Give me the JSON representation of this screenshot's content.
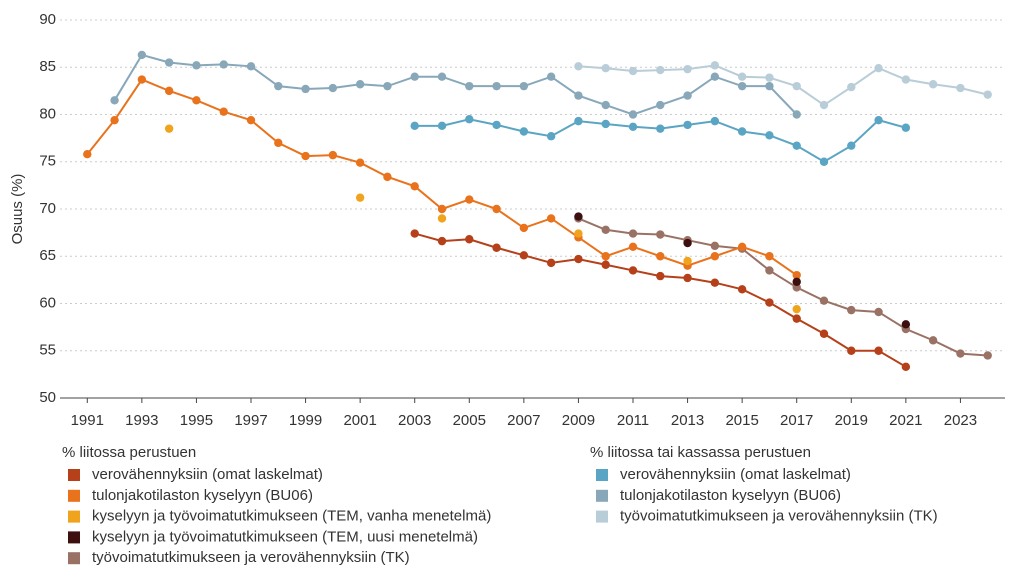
{
  "chart_data": {
    "type": "line",
    "y_label": "Osuus (%)",
    "x": [
      1991,
      1992,
      1993,
      1994,
      1995,
      1996,
      1997,
      1998,
      1999,
      2000,
      2001,
      2002,
      2003,
      2004,
      2005,
      2006,
      2007,
      2008,
      2009,
      2010,
      2011,
      2012,
      2013,
      2014,
      2015,
      2016,
      2017,
      2018,
      2019,
      2020,
      2021,
      2022,
      2023,
      2024
    ],
    "xlim": [
      1990,
      2025
    ],
    "xticks": [
      1991,
      1993,
      1995,
      1997,
      1999,
      2001,
      2003,
      2005,
      2007,
      2009,
      2011,
      2013,
      2015,
      2017,
      2019,
      2021,
      2023
    ],
    "ylim": [
      50,
      90
    ],
    "yticks": [
      50,
      55,
      60,
      65,
      70,
      75,
      80,
      85,
      90
    ],
    "grid": true,
    "series_groups": [
      {
        "title": "% liitossa perustuen",
        "series": [
          {
            "name": "verovähennyksiin (omat laskelmat)",
            "color": "#b5401a",
            "values": [
              null,
              null,
              null,
              null,
              null,
              null,
              null,
              null,
              null,
              null,
              null,
              null,
              67.4,
              66.6,
              66.8,
              65.9,
              65.1,
              64.3,
              64.7,
              64.1,
              63.5,
              62.9,
              62.7,
              62.2,
              61.5,
              60.1,
              58.4,
              56.8,
              55.0,
              55.0,
              53.3,
              null,
              null,
              null
            ]
          },
          {
            "name": "tulonjakotilaston kyselyyn (BU06)",
            "color": "#e8731c",
            "values": [
              75.8,
              79.4,
              83.7,
              82.5,
              81.5,
              80.3,
              79.4,
              77.0,
              75.6,
              75.7,
              74.9,
              73.4,
              72.4,
              70.0,
              71.0,
              70.0,
              68.0,
              69.0,
              67.0,
              65.0,
              66.0,
              65.0,
              64.0,
              65.0,
              66.0,
              65.0,
              63.0,
              null,
              null,
              null,
              null,
              null,
              null,
              null
            ]
          },
          {
            "name": "kyselyyn ja työvoimatutkimukseen (TEM, vanha menetelmä)",
            "color": "#f0a31c",
            "values": [
              null,
              null,
              null,
              78.5,
              null,
              null,
              null,
              null,
              null,
              null,
              71.2,
              null,
              null,
              69.0,
              null,
              null,
              null,
              null,
              67.4,
              null,
              null,
              null,
              64.5,
              null,
              null,
              null,
              59.4,
              null,
              null,
              null,
              null,
              null,
              null,
              null
            ]
          },
          {
            "name": "kyselyyn ja työvoimatutkimukseen (TEM, uusi menetelmä)",
            "color": "#3d0f0f",
            "values": [
              null,
              null,
              null,
              null,
              null,
              null,
              null,
              null,
              null,
              null,
              null,
              null,
              null,
              null,
              null,
              null,
              null,
              null,
              69.2,
              null,
              null,
              null,
              66.4,
              null,
              null,
              null,
              62.3,
              null,
              null,
              null,
              57.8,
              null,
              null,
              null
            ]
          },
          {
            "name": "työvoimatutkimukseen ja verovähennyksiin (TK)",
            "color": "#9a7265",
            "values": [
              null,
              null,
              null,
              null,
              null,
              null,
              null,
              null,
              null,
              null,
              null,
              null,
              null,
              null,
              null,
              null,
              null,
              null,
              69.0,
              67.8,
              67.4,
              67.3,
              66.7,
              66.1,
              65.8,
              63.5,
              61.7,
              60.3,
              59.3,
              59.1,
              57.3,
              56.1,
              54.7,
              54.5
            ]
          }
        ]
      },
      {
        "title": "% liitossa tai kassassa perustuen",
        "series": [
          {
            "name": "verovähennyksiin (omat laskelmat)",
            "color": "#5ba5c4",
            "values": [
              null,
              null,
              null,
              null,
              null,
              null,
              null,
              null,
              null,
              null,
              null,
              null,
              78.8,
              78.8,
              79.5,
              78.9,
              78.2,
              77.7,
              79.3,
              79.0,
              78.7,
              78.5,
              78.9,
              79.3,
              78.2,
              77.8,
              76.7,
              75.0,
              76.7,
              79.4,
              78.6,
              null,
              null,
              null
            ]
          },
          {
            "name": "tulonjakotilaston kyselyyn (BU06)",
            "color": "#88a8ba",
            "values": [
              null,
              81.5,
              86.3,
              85.5,
              85.2,
              85.3,
              85.1,
              83.0,
              82.7,
              82.8,
              83.2,
              83.0,
              84.0,
              84.0,
              83.0,
              83.0,
              83.0,
              84.0,
              82.0,
              81.0,
              80.0,
              81.0,
              82.0,
              84.0,
              83.0,
              83.0,
              80.0,
              null,
              null,
              null,
              null,
              null,
              null,
              null
            ]
          },
          {
            "name": "työvoimatutkimukseen ja verovähennyksiin (TK)",
            "color": "#b9cdd8",
            "values": [
              null,
              null,
              null,
              null,
              null,
              null,
              null,
              null,
              null,
              null,
              null,
              null,
              null,
              null,
              null,
              null,
              null,
              null,
              85.1,
              84.9,
              84.6,
              84.7,
              84.8,
              85.2,
              84.0,
              83.9,
              83.0,
              81.0,
              82.9,
              84.9,
              83.7,
              83.2,
              82.8,
              82.1
            ]
          }
        ]
      }
    ]
  }
}
